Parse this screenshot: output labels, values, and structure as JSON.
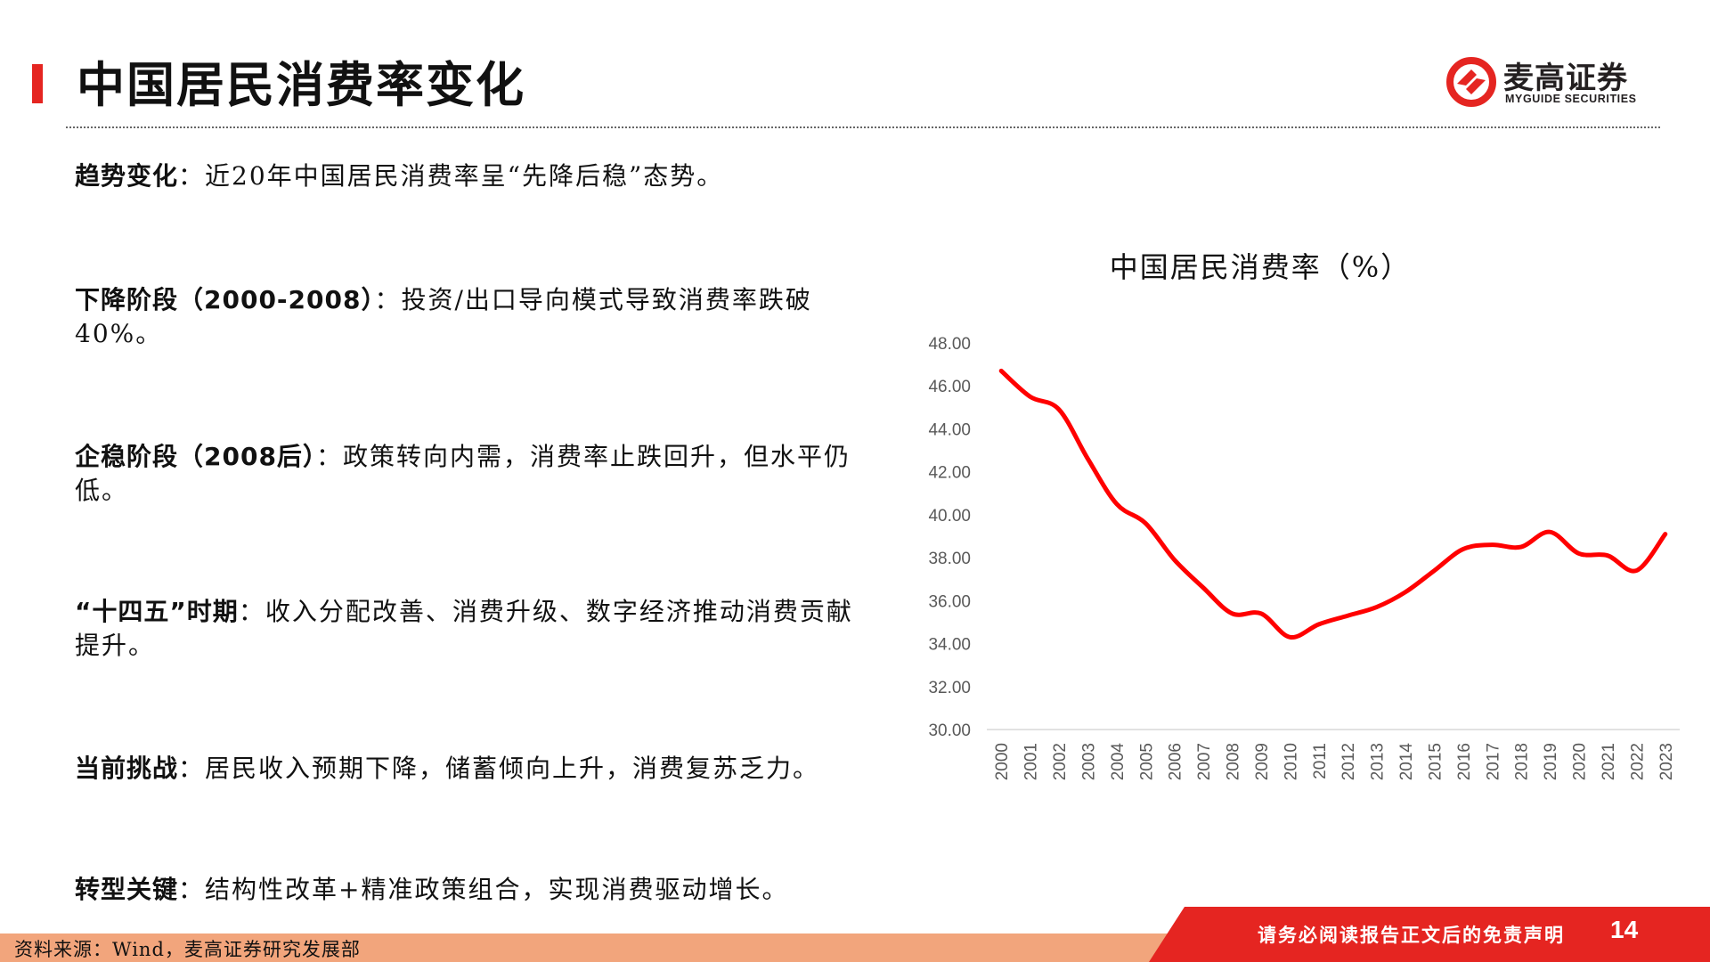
{
  "header": {
    "title": "中国居民消费率变化",
    "logo_cn": "麦高证券",
    "logo_en": "MYGUIDE SECURITIES"
  },
  "colors": {
    "accent": "#e52521",
    "source_bar": "#f2a57c",
    "line": "#ff0000"
  },
  "bullets": [
    {
      "label": "趋势变化",
      "text": "：近20年中国居民消费率呈“先降后稳”态势。"
    },
    {
      "label": "下降阶段（2000-2008）",
      "text": "：投资/出口导向模式导致消费率跌破40%。"
    },
    {
      "label": "企稳阶段（2008后）",
      "text": "：政策转向内需，消费率止跌回升，但水平仍低。"
    },
    {
      "label": "“十四五”时期",
      "text": "：收入分配改善、消费升级、数字经济推动消费贡献提升。"
    },
    {
      "label": "当前挑战",
      "text": "：居民收入预期下降，储蓄倾向上升，消费复苏乏力。"
    },
    {
      "label": "转型关键",
      "text": "：结构性改革+精准政策组合，实现消费驱动增长。"
    }
  ],
  "chart_data": {
    "type": "line",
    "title": "中国居民消费率（%）",
    "x": [
      "2000",
      "2001",
      "2002",
      "2003",
      "2004",
      "2005",
      "2006",
      "2007",
      "2008",
      "2009",
      "2010",
      "2011",
      "2012",
      "2013",
      "2014",
      "2015",
      "2016",
      "2017",
      "2018",
      "2019",
      "2020",
      "2021",
      "2022",
      "2023"
    ],
    "series": [
      {
        "values": [
          46.7,
          45.5,
          44.9,
          42.6,
          40.5,
          39.6,
          37.9,
          36.6,
          35.4,
          35.4,
          34.3,
          34.9,
          35.3,
          35.7,
          36.4,
          37.4,
          38.4,
          38.6,
          38.5,
          39.2,
          38.2,
          38.1,
          37.4,
          39.1
        ]
      }
    ],
    "ylim": [
      30,
      48
    ],
    "yticks": [
      "30.00",
      "32.00",
      "34.00",
      "36.00",
      "38.00",
      "40.00",
      "42.00",
      "44.00",
      "46.00",
      "48.00"
    ],
    "grid": false,
    "legend": "none"
  },
  "footer": {
    "source": "资料来源：Wind，麦高证券研究发展部",
    "disclaimer": "请务必阅读报告正文后的免责声明",
    "page": "14"
  }
}
